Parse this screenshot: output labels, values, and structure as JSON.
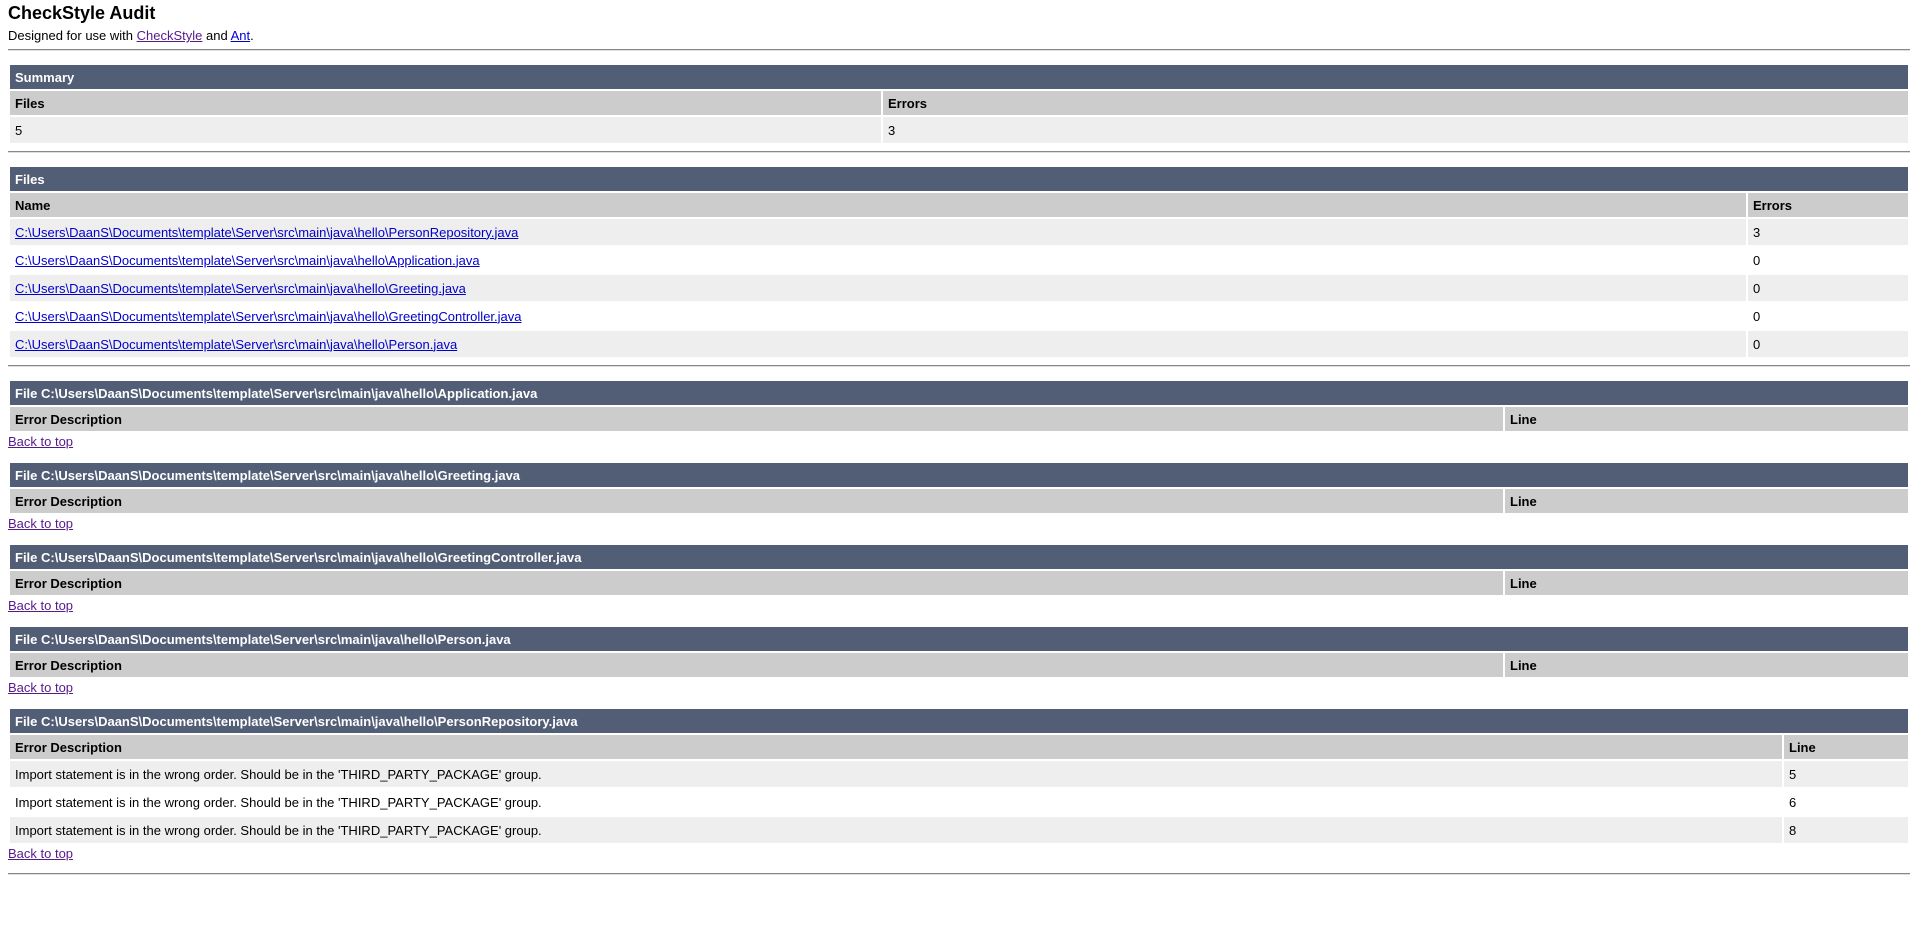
{
  "header": {
    "title": "CheckStyle Audit",
    "designed_prefix": "Designed for use with ",
    "checkstyle_link": "CheckStyle",
    "and_text": " and ",
    "ant_link": "Ant",
    "suffix": "."
  },
  "summary": {
    "title": "Summary",
    "col_files": "Files",
    "col_errors": "Errors",
    "files": "5",
    "errors": "3"
  },
  "files": {
    "title": "Files",
    "col_name": "Name",
    "col_errors": "Errors",
    "rows": [
      {
        "name": "C:\\Users\\DaanS\\Documents\\template\\Server\\src\\main\\java\\hello\\PersonRepository.java",
        "errors": "3"
      },
      {
        "name": "C:\\Users\\DaanS\\Documents\\template\\Server\\src\\main\\java\\hello\\Application.java",
        "errors": "0"
      },
      {
        "name": "C:\\Users\\DaanS\\Documents\\template\\Server\\src\\main\\java\\hello\\Greeting.java",
        "errors": "0"
      },
      {
        "name": "C:\\Users\\DaanS\\Documents\\template\\Server\\src\\main\\java\\hello\\GreetingController.java",
        "errors": "0"
      },
      {
        "name": "C:\\Users\\DaanS\\Documents\\template\\Server\\src\\main\\java\\hello\\Person.java",
        "errors": "0"
      }
    ]
  },
  "labels": {
    "error_description": "Error Description",
    "line": "Line",
    "back_to_top": "Back to top"
  },
  "sections": [
    {
      "title": "File C:\\Users\\DaanS\\Documents\\template\\Server\\src\\main\\java\\hello\\Application.java",
      "errors": []
    },
    {
      "title": "File C:\\Users\\DaanS\\Documents\\template\\Server\\src\\main\\java\\hello\\Greeting.java",
      "errors": []
    },
    {
      "title": "File C:\\Users\\DaanS\\Documents\\template\\Server\\src\\main\\java\\hello\\GreetingController.java",
      "errors": []
    },
    {
      "title": "File C:\\Users\\DaanS\\Documents\\template\\Server\\src\\main\\java\\hello\\Person.java",
      "errors": []
    },
    {
      "title": "File C:\\Users\\DaanS\\Documents\\template\\Server\\src\\main\\java\\hello\\PersonRepository.java",
      "errors": [
        {
          "description": "Import statement is in the wrong order. Should be in the 'THIRD_PARTY_PACKAGE' group.",
          "line": "5"
        },
        {
          "description": "Import statement is in the wrong order. Should be in the 'THIRD_PARTY_PACKAGE' group.",
          "line": "6"
        },
        {
          "description": "Import statement is in the wrong order. Should be in the 'THIRD_PARTY_PACKAGE' group.",
          "line": "8"
        }
      ]
    }
  ]
}
